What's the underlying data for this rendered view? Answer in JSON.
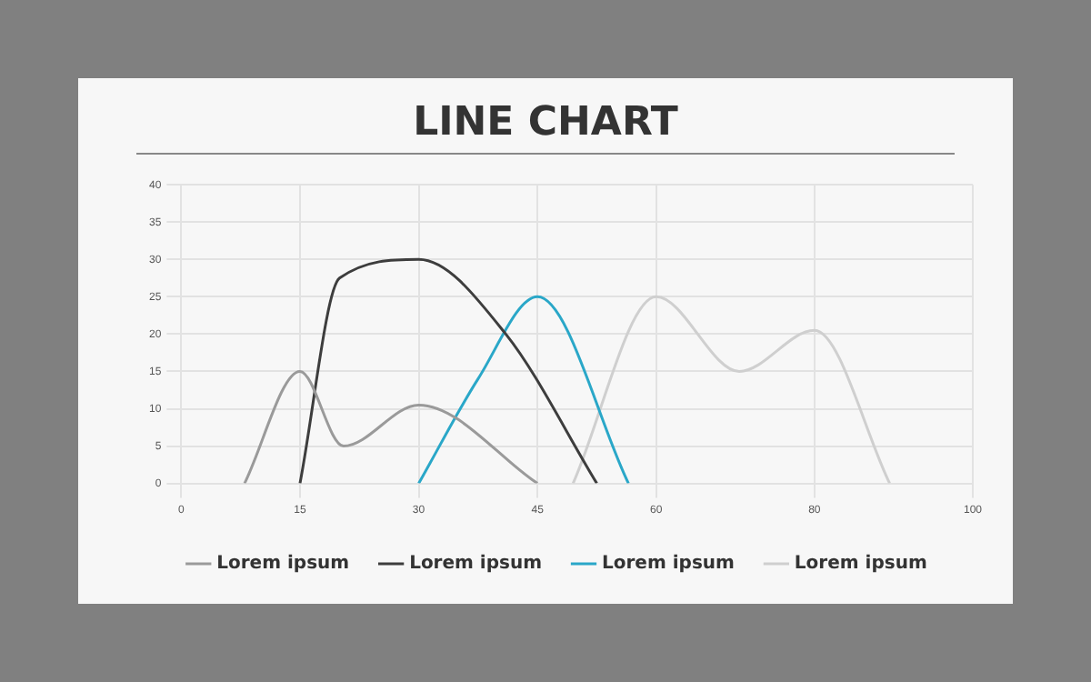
{
  "chart_data": {
    "type": "line",
    "title": "LINE CHART",
    "xlim": [
      0,
      100
    ],
    "xticks": [
      0,
      15,
      30,
      45,
      60,
      80,
      100
    ],
    "ylim": [
      0,
      40
    ],
    "yticks": [
      0,
      5,
      10,
      15,
      20,
      25,
      30,
      35,
      40
    ],
    "grid": true,
    "legend": "bottom",
    "marker": "none",
    "line_style": "solid",
    "series": [
      {
        "name": "Lorem ipsum",
        "color": "#9a9a9a",
        "x": [
          8,
          15,
          20.5,
          30,
          45
        ],
        "values": [
          0,
          15,
          5,
          10.5,
          0
        ]
      },
      {
        "name": "Lorem ipsum",
        "color": "#3d3d3d",
        "x": [
          15,
          20,
          30,
          41,
          52.5
        ],
        "values": [
          0,
          27.5,
          30,
          20,
          0
        ]
      },
      {
        "name": "Lorem ipsum",
        "color": "#2aa7c8",
        "x": [
          30,
          37.5,
          45,
          56.5
        ],
        "values": [
          0,
          14,
          25,
          0
        ]
      },
      {
        "name": "Lorem ipsum",
        "color": "#cfcfcf",
        "x": [
          49.5,
          60,
          70.5,
          80,
          89.5
        ],
        "values": [
          0,
          25,
          15,
          20.5,
          0
        ]
      }
    ]
  }
}
